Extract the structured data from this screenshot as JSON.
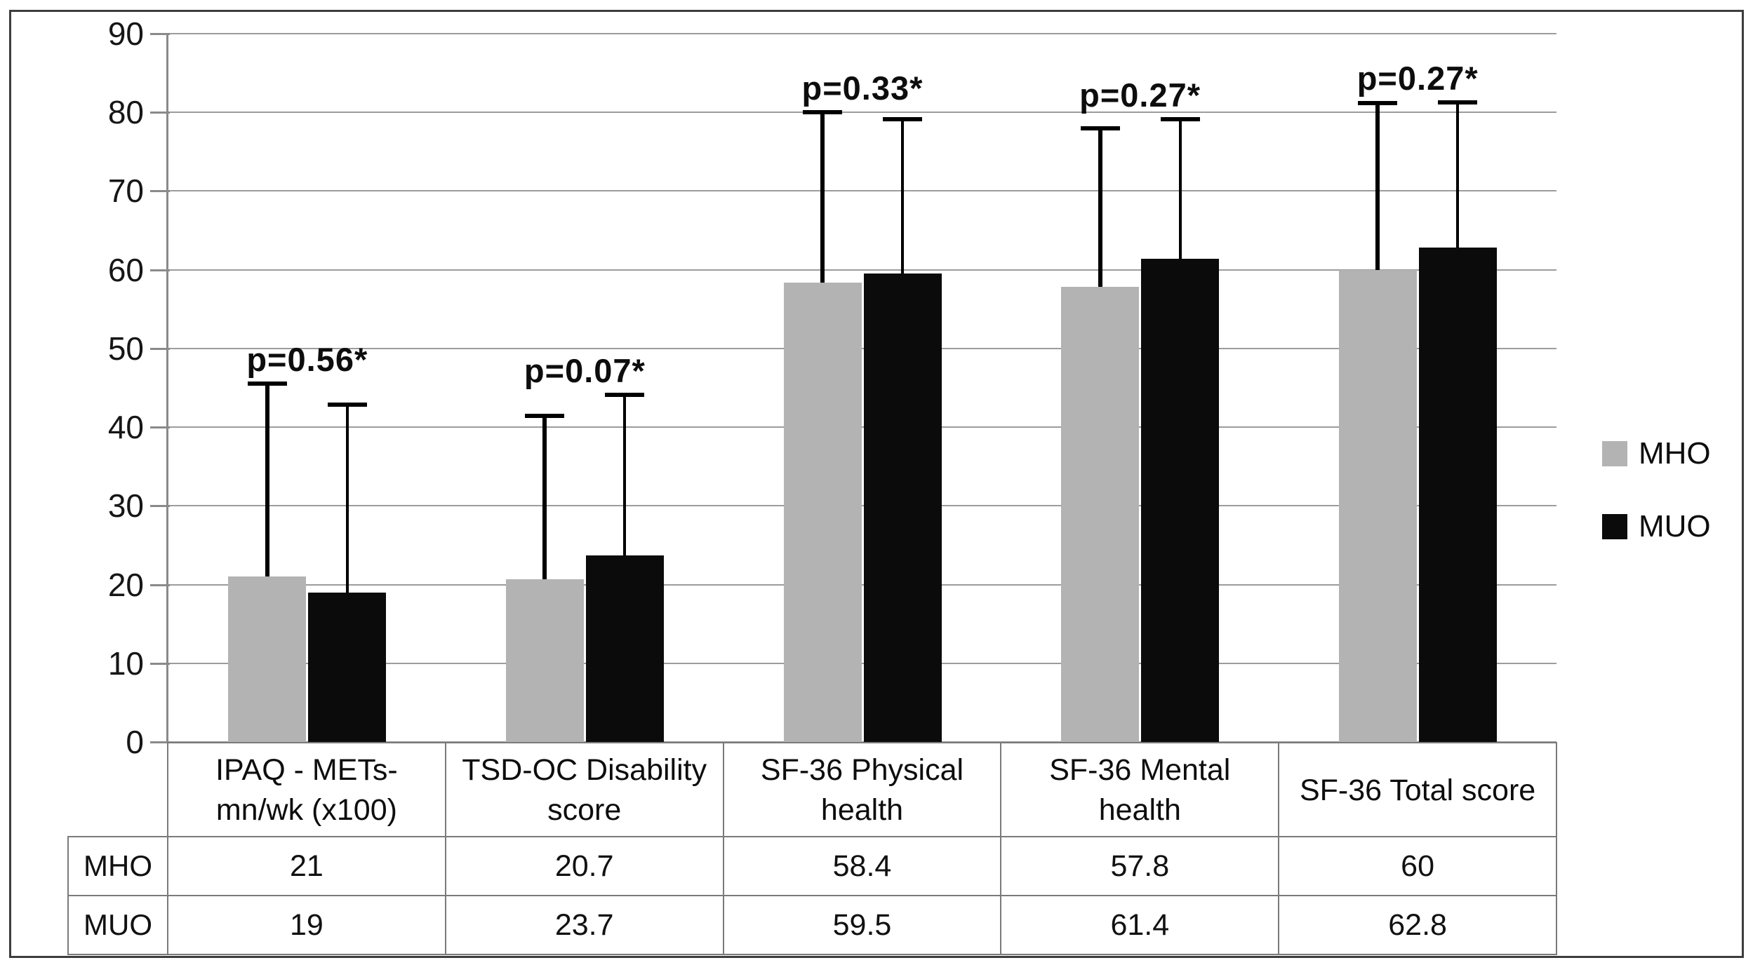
{
  "chart_data": {
    "type": "bar",
    "title": "",
    "xlabel": "",
    "ylabel": "",
    "ylim": [
      0,
      90
    ],
    "ytick_step": 10,
    "yticks": [
      "90",
      "80",
      "70",
      "60",
      "50",
      "40",
      "30",
      "20",
      "10",
      "0"
    ],
    "grid": true,
    "legend_position": "right",
    "categories": [
      "IPAQ - METs-mn/wk (x100)",
      "TSD-OC Disability score",
      "SF-36 Physical health",
      "SF-36 Mental health",
      "SF-36 Total score"
    ],
    "category_lines": [
      [
        "IPAQ - METs-",
        "mn/wk (x100)"
      ],
      [
        "TSD-OC Disability",
        "score"
      ],
      [
        "SF-36 Physical",
        "health"
      ],
      [
        "SF-36 Mental",
        "health"
      ],
      [
        "SF-36 Total score"
      ]
    ],
    "series": [
      {
        "name": "MHO",
        "color": "#b3b3b3",
        "values": [
          21,
          20.7,
          58.4,
          57.8,
          60
        ],
        "error_bar_top": [
          45.5,
          41.4,
          80,
          78,
          81.2
        ]
      },
      {
        "name": "MUO",
        "color": "#0b0b0b",
        "values": [
          19,
          23.7,
          59.5,
          61.4,
          62.8
        ],
        "error_bar_top": [
          42.9,
          44.1,
          79.1,
          79.1,
          81.3
        ]
      }
    ],
    "p_labels": [
      "p=0.56*",
      "p=0.07*",
      "p=0.33*",
      "p=0.27*",
      "p=0.27*"
    ],
    "data_table": {
      "row_headers": [
        "MHO",
        "MUO"
      ],
      "rows": [
        [
          "21",
          "20.7",
          "58.4",
          "57.8",
          "60"
        ],
        [
          "19",
          "23.7",
          "59.5",
          "61.4",
          "62.8"
        ]
      ]
    }
  },
  "legend": {
    "items": [
      {
        "label": "MHO",
        "color": "#b3b3b3"
      },
      {
        "label": "MUO",
        "color": "#0b0b0b"
      }
    ]
  },
  "colors": {
    "gridline": "#9c9c9c",
    "axis": "#8a8a8a",
    "table_border": "#7a7a7a",
    "figure_border": "#3d3d3d",
    "background": "#ffffff"
  }
}
